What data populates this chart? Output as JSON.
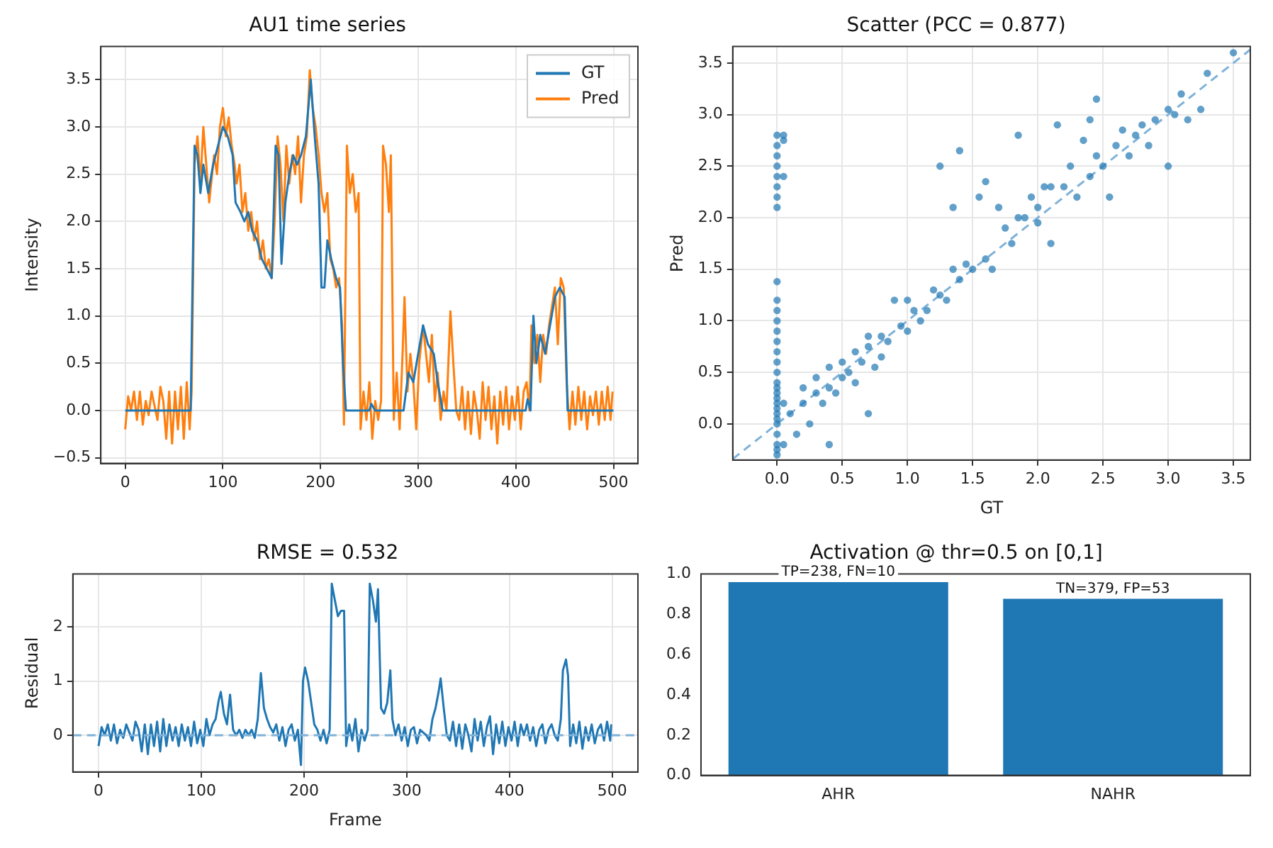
{
  "chart_data": [
    {
      "type": "line",
      "title": "AU1 time series",
      "ylabel": "Intensity",
      "xlim": [
        -25,
        525
      ],
      "xticks": [
        0,
        100,
        200,
        300,
        400,
        500
      ],
      "ylim": [
        -0.56,
        3.85
      ],
      "yticks": [
        {
          "value": -0.5,
          "label": "−0.5"
        },
        {
          "value": 0,
          "label": "0.0"
        },
        {
          "value": 0.5,
          "label": "0.5"
        },
        {
          "value": 1,
          "label": "1.0"
        },
        {
          "value": 1.5,
          "label": "1.5"
        },
        {
          "value": 2,
          "label": "2.0"
        },
        {
          "value": 2.5,
          "label": "2.5"
        },
        {
          "value": 3,
          "label": "3.0"
        },
        {
          "value": 3.5,
          "label": "3.5"
        }
      ],
      "grid": true,
      "legend": "top right",
      "series": [
        {
          "name": "GT",
          "color": "#1f77b4",
          "x": [
            0,
            67,
            71,
            74,
            77,
            80,
            85,
            90,
            95,
            100,
            105,
            110,
            113,
            118,
            122,
            126,
            130,
            135,
            140,
            145,
            150,
            154,
            157,
            160,
            164,
            168,
            172,
            176,
            180,
            185,
            190,
            194,
            198,
            201,
            204,
            207,
            211,
            216,
            220,
            223,
            226,
            250,
            252,
            256,
            285,
            290,
            295,
            300,
            305,
            310,
            316,
            320,
            325,
            410,
            412,
            415,
            418,
            421,
            425,
            430,
            435,
            440,
            445,
            450,
            453,
            500
          ],
          "values": [
            0,
            0,
            2.8,
            2.7,
            2.3,
            2.6,
            2.3,
            2.6,
            2.8,
            3.0,
            2.9,
            2.7,
            2.2,
            2.1,
            2.0,
            2.1,
            1.9,
            1.8,
            1.6,
            1.5,
            1.4,
            2.8,
            2.7,
            1.55,
            2.2,
            2.5,
            2.7,
            2.6,
            2.7,
            2.9,
            3.5,
            2.9,
            2.4,
            1.3,
            1.3,
            1.8,
            1.6,
            1.4,
            1.3,
            0.5,
            0,
            0,
            0.07,
            0,
            0,
            0.4,
            0.3,
            0.6,
            0.9,
            0.7,
            0.6,
            0.3,
            0,
            0,
            0.12,
            0,
            1.0,
            0.5,
            0.8,
            0.6,
            0.9,
            1.2,
            1.3,
            1.2,
            0,
            0
          ]
        },
        {
          "name": "Pred",
          "color": "#ff7f0e",
          "x": [
            0,
            3,
            6,
            9,
            12,
            15,
            18,
            21,
            24,
            27,
            30,
            33,
            36,
            39,
            42,
            45,
            48,
            51,
            54,
            57,
            60,
            63,
            66,
            68,
            71,
            74,
            77,
            80,
            83,
            86,
            88,
            91,
            94,
            97,
            100,
            103,
            106,
            109,
            112,
            114,
            117,
            120,
            123,
            126,
            129,
            132,
            135,
            138,
            141,
            144,
            147,
            150,
            153,
            156,
            159,
            162,
            165,
            168,
            171,
            174,
            177,
            180,
            183,
            186,
            189,
            192,
            195,
            198,
            201,
            204,
            207,
            210,
            213,
            216,
            219,
            222,
            224,
            227,
            230,
            233,
            236,
            239,
            241,
            244,
            247,
            250,
            253,
            256,
            259,
            262,
            264,
            267,
            270,
            272,
            275,
            278,
            281,
            284,
            286,
            289,
            292,
            295,
            298,
            301,
            305,
            308,
            311,
            314,
            317,
            320,
            323,
            326,
            329,
            333,
            336,
            339,
            342,
            345,
            348,
            351,
            354,
            357,
            360,
            363,
            366,
            369,
            372,
            375,
            378,
            381,
            384,
            387,
            390,
            393,
            396,
            399,
            402,
            405,
            408,
            411,
            414,
            416,
            419,
            422,
            425,
            428,
            431,
            434,
            437,
            440,
            443,
            446,
            449,
            452,
            455,
            458,
            461,
            464,
            467,
            470,
            473,
            476,
            479,
            482,
            485,
            488,
            491,
            494,
            497,
            499
          ],
          "values": [
            -0.2,
            0.15,
            0.0,
            0.2,
            -0.1,
            0.2,
            -0.15,
            0.1,
            -0.05,
            0.2,
            0.05,
            -0.1,
            0.25,
            0.1,
            -0.3,
            0.2,
            -0.35,
            0.2,
            -0.2,
            0.25,
            -0.3,
            0.3,
            -0.2,
            0.2,
            2.6,
            2.9,
            2.4,
            3.0,
            2.6,
            2.2,
            2.4,
            2.7,
            2.5,
            3.0,
            3.2,
            2.9,
            3.1,
            2.8,
            2.6,
            2.4,
            2.6,
            2.1,
            2.3,
            1.9,
            2.1,
            1.8,
            2.0,
            1.6,
            1.8,
            1.5,
            1.6,
            1.4,
            2.0,
            2.9,
            2.6,
            2.0,
            2.8,
            2.4,
            2.7,
            2.5,
            2.9,
            2.2,
            2.7,
            2.9,
            3.6,
            3.2,
            3.0,
            2.7,
            2.3,
            2.1,
            2.3,
            1.6,
            1.5,
            1.3,
            1.4,
            0.9,
            -0.15,
            2.8,
            2.3,
            2.5,
            2.1,
            2.3,
            -0.2,
            0.2,
            -0.1,
            0.3,
            -0.3,
            0.1,
            -0.1,
            0.1,
            2.8,
            2.6,
            2.1,
            2.7,
            -0.1,
            0.4,
            -0.2,
            0.6,
            1.2,
            0.2,
            0.6,
            0.3,
            -0.2,
            0.5,
            0.9,
            0.6,
            0.3,
            0.8,
            0.1,
            0.4,
            -0.1,
            0.2,
            0.0,
            1.05,
            0.5,
            0.0,
            -0.1,
            0.25,
            -0.2,
            0.2,
            -0.25,
            0.2,
            0.0,
            -0.3,
            0.3,
            -0.1,
            0.25,
            -0.2,
            0.15,
            -0.35,
            0.2,
            -0.15,
            0.25,
            -0.2,
            0.15,
            -0.1,
            0.25,
            -0.2,
            0.2,
            0.3,
            0.0,
            0.9,
            0.5,
            0.8,
            0.3,
            0.8,
            0.6,
            0.9,
            1.1,
            1.3,
            0.7,
            1.4,
            1.3,
            0.3,
            -0.2,
            0.2,
            -0.15,
            0.25,
            -0.1,
            0.2,
            -0.2,
            0.15,
            -0.05,
            0.2,
            -0.15,
            0.2,
            -0.1,
            0.25,
            -0.1,
            0.2
          ]
        }
      ]
    },
    {
      "type": "scatter",
      "title": "Scatter (PCC = 0.877)",
      "xlabel": "GT",
      "ylabel": "Pred",
      "xlim": [
        -0.34,
        3.63
      ],
      "xticks": [
        {
          "value": 0,
          "label": "0.0"
        },
        {
          "value": 0.5,
          "label": "0.5"
        },
        {
          "value": 1,
          "label": "1.0"
        },
        {
          "value": 1.5,
          "label": "1.5"
        },
        {
          "value": 2,
          "label": "2.0"
        },
        {
          "value": 2.5,
          "label": "2.5"
        },
        {
          "value": 3,
          "label": "3.0"
        },
        {
          "value": 3.5,
          "label": "3.5"
        }
      ],
      "ylim": [
        -0.35,
        3.66
      ],
      "yticks": [
        {
          "value": 0,
          "label": "0.0"
        },
        {
          "value": 0.5,
          "label": "0.5"
        },
        {
          "value": 1,
          "label": "1.0"
        },
        {
          "value": 1.5,
          "label": "1.5"
        },
        {
          "value": 2,
          "label": "2.0"
        },
        {
          "value": 2.5,
          "label": "2.5"
        },
        {
          "value": 3,
          "label": "3.0"
        },
        {
          "value": 3.5,
          "label": "3.5"
        }
      ],
      "grid": true,
      "series": [
        {
          "color": "#1f77b4",
          "marker": "circle",
          "x": [
            0,
            0,
            0,
            0,
            0,
            0,
            0,
            0,
            0,
            0,
            0,
            0,
            0,
            0,
            0,
            0,
            0,
            0,
            0,
            0,
            0,
            0,
            0,
            0,
            0,
            0,
            0,
            0,
            0,
            0,
            0.05,
            0.05,
            0.05,
            0.05,
            0.05,
            0.1,
            0.15,
            0.2,
            0.2,
            0.25,
            0.3,
            0.3,
            0.35,
            0.4,
            0.4,
            0.45,
            0.5,
            0.5,
            0.55,
            0.6,
            0.6,
            0.65,
            0.7,
            0.7,
            0.75,
            0.8,
            0.8,
            0.85,
            0.9,
            0.95,
            1.0,
            1.0,
            1.05,
            1.1,
            1.15,
            1.2,
            1.25,
            1.3,
            1.35,
            1.4,
            1.45,
            1.5,
            1.55,
            1.6,
            1.65,
            1.7,
            1.75,
            1.8,
            1.85,
            1.9,
            1.95,
            2.0,
            2.0,
            2.05,
            2.1,
            2.1,
            2.15,
            2.2,
            2.25,
            2.3,
            2.35,
            2.4,
            2.45,
            2.5,
            2.55,
            2.6,
            2.65,
            2.7,
            2.75,
            2.8,
            2.85,
            2.9,
            3.0,
            3.0,
            3.05,
            3.1,
            3.15,
            3.25,
            3.3,
            3.5,
            1.25,
            1.35,
            1.4,
            1.6,
            1.85,
            2.4,
            2.45,
            0.4,
            0.7
          ],
          "values": [
            -0.3,
            -0.2,
            -0.1,
            0,
            0.05,
            0.1,
            0.15,
            0.2,
            0.25,
            0.3,
            0.4,
            0.5,
            0.6,
            0.7,
            0.8,
            0.9,
            1.0,
            1.1,
            1.2,
            1.38,
            2.1,
            2.2,
            2.3,
            2.4,
            2.5,
            2.6,
            2.7,
            2.8,
            -0.25,
            0.35,
            2.4,
            2.8,
            2.75,
            0.2,
            -0.2,
            0.1,
            -0.1,
            0.2,
            0.35,
            0.0,
            0.3,
            0.45,
            0.2,
            0.55,
            0.35,
            0.3,
            0.45,
            0.6,
            0.5,
            0.7,
            0.4,
            0.6,
            0.75,
            0.85,
            0.55,
            0.85,
            0.65,
            0.8,
            1.2,
            0.95,
            0.9,
            1.2,
            1.1,
            1.0,
            1.1,
            1.3,
            1.25,
            1.2,
            1.5,
            1.4,
            1.55,
            1.5,
            2.2,
            1.6,
            1.5,
            2.1,
            1.9,
            1.75,
            2.0,
            2.0,
            2.2,
            2.1,
            1.95,
            2.3,
            1.75,
            2.3,
            2.9,
            2.3,
            2.5,
            2.2,
            2.75,
            2.4,
            2.6,
            2.5,
            2.2,
            2.7,
            2.85,
            2.6,
            2.8,
            2.9,
            2.7,
            2.95,
            2.5,
            3.05,
            3.0,
            3.2,
            2.95,
            3.05,
            3.4,
            3.6,
            2.5,
            2.1,
            2.65,
            2.35,
            2.8,
            2.95,
            3.15,
            -0.2,
            0.1
          ]
        },
        {
          "type": "line",
          "color": "#7fb2d9",
          "line_style": "dashed",
          "marker": "none",
          "x": [
            -0.34,
            3.63
          ],
          "values": [
            -0.34,
            3.63
          ]
        }
      ]
    },
    {
      "type": "line",
      "title": "RMSE = 0.532",
      "xlabel": "Frame",
      "ylabel": "Residual",
      "xlim": [
        -25,
        525
      ],
      "xticks": [
        0,
        100,
        200,
        300,
        400,
        500
      ],
      "ylim": [
        -0.68,
        2.98
      ],
      "yticks": [
        0,
        1,
        2
      ],
      "grid": true,
      "ref_lines": [
        {
          "axis": "y",
          "value": 0,
          "color": "#7fb2d9",
          "line_style": "dashed"
        }
      ],
      "series": [
        {
          "color": "#1f77b4",
          "x": [
            0,
            3,
            6,
            9,
            12,
            15,
            18,
            21,
            24,
            27,
            30,
            33,
            36,
            39,
            42,
            45,
            48,
            51,
            54,
            57,
            60,
            63,
            66,
            69,
            72,
            75,
            78,
            81,
            84,
            87,
            90,
            93,
            96,
            99,
            102,
            105,
            108,
            111,
            114,
            117,
            119,
            122,
            125,
            128,
            131,
            134,
            137,
            140,
            143,
            146,
            149,
            152,
            155,
            158,
            161,
            164,
            167,
            170,
            173,
            176,
            179,
            182,
            185,
            188,
            191,
            194,
            197,
            199,
            201,
            204,
            207,
            210,
            213,
            216,
            219,
            222,
            225,
            227,
            230,
            233,
            236,
            239,
            241,
            244,
            247,
            250,
            253,
            256,
            259,
            262,
            264,
            267,
            270,
            272,
            275,
            278,
            281,
            284,
            286,
            289,
            292,
            295,
            298,
            301,
            304,
            307,
            310,
            313,
            316,
            319,
            322,
            325,
            328,
            331,
            333,
            336,
            339,
            342,
            345,
            348,
            351,
            354,
            357,
            360,
            363,
            366,
            369,
            372,
            375,
            378,
            381,
            384,
            387,
            390,
            393,
            396,
            399,
            402,
            405,
            408,
            411,
            414,
            417,
            420,
            423,
            426,
            429,
            432,
            435,
            438,
            441,
            444,
            447,
            450,
            452,
            455,
            457,
            459,
            462,
            465,
            468,
            471,
            474,
            477,
            480,
            483,
            486,
            489,
            492,
            495,
            498,
            499
          ],
          "values": [
            -0.2,
            0.15,
            0.0,
            0.2,
            -0.1,
            0.2,
            -0.15,
            0.1,
            -0.05,
            0.2,
            0.05,
            -0.1,
            0.25,
            0.1,
            -0.3,
            0.2,
            -0.35,
            0.2,
            -0.2,
            0.25,
            -0.3,
            0.3,
            -0.2,
            0.2,
            -0.1,
            0.15,
            -0.2,
            0.2,
            -0.1,
            0.15,
            -0.2,
            0.25,
            -0.15,
            0.1,
            -0.2,
            0.3,
            0.0,
            0.2,
            0.3,
            0.65,
            0.8,
            0.4,
            0.2,
            0.75,
            0.1,
            0.0,
            0.1,
            -0.05,
            0.1,
            0.0,
            0.1,
            -0.05,
            0.3,
            1.15,
            0.5,
            0.3,
            0.15,
            0.05,
            0.2,
            -0.1,
            0.15,
            -0.2,
            0.1,
            0.2,
            -0.1,
            0.1,
            -0.55,
            1.0,
            1.25,
            1.0,
            0.6,
            0.2,
            0.1,
            -0.1,
            0.1,
            -0.15,
            0.1,
            2.8,
            2.5,
            2.2,
            2.3,
            2.3,
            -0.2,
            0.2,
            -0.1,
            0.3,
            -0.3,
            0.1,
            -0.1,
            0.1,
            2.8,
            2.5,
            2.1,
            2.7,
            0.5,
            0.4,
            0.6,
            1.2,
            0.3,
            0.0,
            0.2,
            -0.1,
            0.15,
            -0.2,
            0.1,
            0.15,
            -0.15,
            0.1,
            0.05,
            0.0,
            -0.1,
            0.3,
            0.5,
            0.8,
            1.05,
            0.5,
            0.0,
            -0.1,
            0.25,
            -0.2,
            0.2,
            -0.25,
            0.2,
            0.0,
            -0.3,
            0.3,
            -0.1,
            0.25,
            -0.2,
            0.15,
            0.35,
            -0.35,
            0.2,
            -0.15,
            0.25,
            -0.2,
            0.15,
            -0.1,
            0.25,
            -0.2,
            0.2,
            0.0,
            0.2,
            -0.1,
            0.15,
            -0.2,
            0.1,
            0.2,
            -0.15,
            0.1,
            0.2,
            0.0,
            -0.1,
            0.3,
            1.2,
            1.4,
            1.1,
            -0.2,
            0.2,
            -0.15,
            0.25,
            -0.25,
            0.15,
            -0.1,
            0.2,
            -0.15,
            0.1,
            0.2,
            -0.1,
            0.25,
            -0.1,
            0.2
          ]
        }
      ]
    },
    {
      "type": "bar",
      "title": "Activation @ thr=0.5 on [0,1]",
      "categories": [
        "AHR",
        "NAHR"
      ],
      "values": [
        0.96,
        0.877
      ],
      "color": "#1f77b4",
      "ylim": [
        0,
        1.0
      ],
      "yticks": [
        {
          "value": 0,
          "label": "0.0"
        },
        {
          "value": 0.2,
          "label": "0.2"
        },
        {
          "value": 0.4,
          "label": "0.4"
        },
        {
          "value": 0.6,
          "label": "0.6"
        },
        {
          "value": 0.8,
          "label": "0.8"
        },
        {
          "value": 1.0,
          "label": "1.0"
        }
      ],
      "annotations": [
        {
          "text": "TP=238, FN=10",
          "x": "AHR",
          "y": 0.96
        },
        {
          "text": "TN=379, FP=53",
          "x": "NAHR",
          "y": 0.877
        }
      ]
    }
  ]
}
